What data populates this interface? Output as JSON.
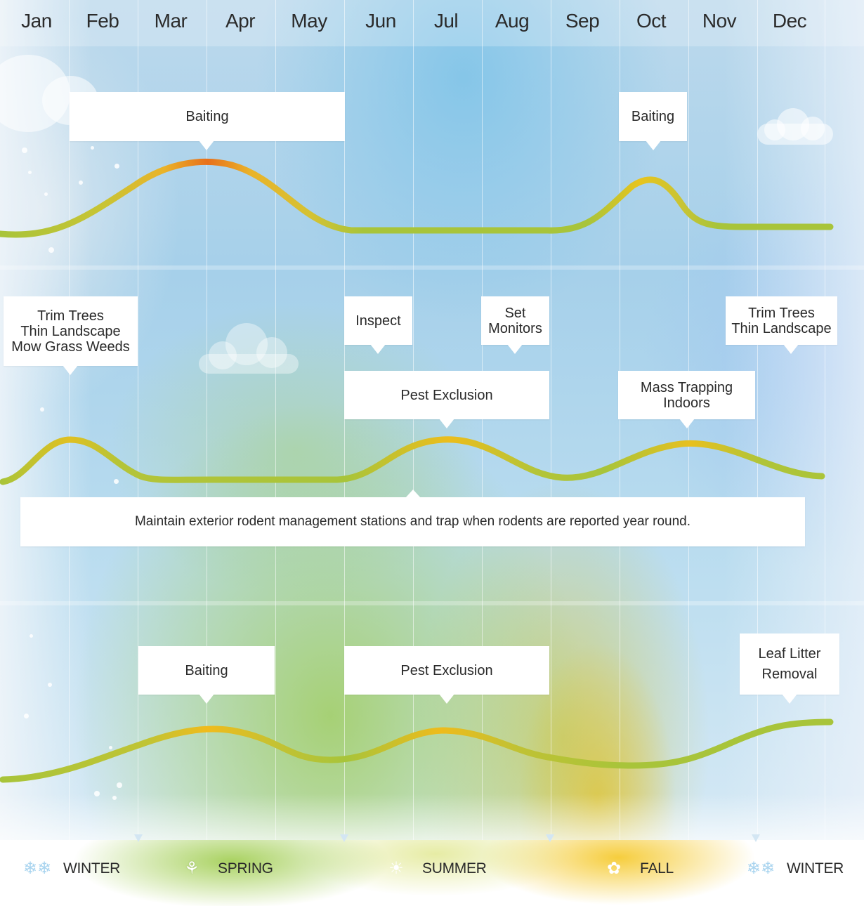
{
  "months": [
    "Jan",
    "Feb",
    "Mar",
    "Apr",
    "May",
    "Jun",
    "Jul",
    "Aug",
    "Sep",
    "Oct",
    "Nov",
    "Dec"
  ],
  "row1": {
    "callouts": [
      {
        "text": "Baiting"
      },
      {
        "text": "Baiting"
      }
    ]
  },
  "row2": {
    "callouts": [
      {
        "text": "Trim Trees\nThin Landscape\nMow Grass Weeds"
      },
      {
        "text": "Inspect"
      },
      {
        "text": "Set\nMonitors"
      },
      {
        "text": "Trim Trees\nThin Landscape"
      },
      {
        "text": "Pest Exclusion"
      },
      {
        "text": "Mass Trapping\nIndoors"
      }
    ],
    "banner": "Maintain exterior rodent management stations and trap when rodents are reported year round."
  },
  "row3": {
    "callouts": [
      {
        "text": "Baiting"
      },
      {
        "text": "Pest Exclusion"
      },
      {
        "text": "Leaf Litter\nRemoval"
      }
    ]
  },
  "seasons": [
    {
      "label": "WINTER",
      "icon": "snowflake-icon"
    },
    {
      "label": "SPRING",
      "icon": "sprout-icon"
    },
    {
      "label": "SUMMER",
      "icon": "sun-icon"
    },
    {
      "label": "FALL",
      "icon": "maple-leaf-icon"
    },
    {
      "label": "WINTER",
      "icon": "snowflake-icon"
    }
  ],
  "colors": {
    "curve_green": "#a8c43a",
    "curve_yellow": "#f0c020",
    "curve_orange": "#e8701a",
    "winter_icon": "#a9d4ef",
    "text": "#2a2a2a"
  }
}
